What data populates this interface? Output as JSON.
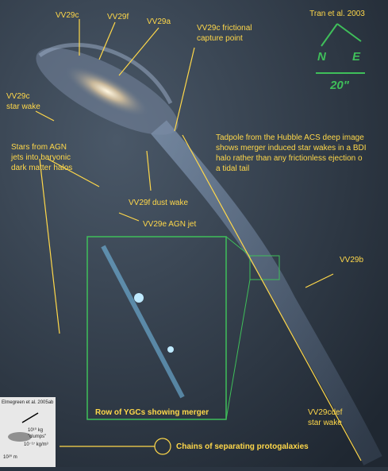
{
  "labels": {
    "vv29c_top": "VV29c",
    "vv29f": "VV29f",
    "vv29a": "VV29a",
    "capture_point": [
      "VV29c frictional",
      "capture point"
    ],
    "credit": "Tran et al. 2003",
    "north": "N",
    "east": "E",
    "scale": "20\"",
    "star_wake": [
      "VV29c",
      "star wake"
    ],
    "tadpole_note": [
      "Tadpole from the Hubble ACS deep image",
      "shows merger induced star wakes in a BDI",
      "halo rather than any frictionless ejection o",
      "a tidal tail"
    ],
    "agn_stars": [
      "Stars from AGN",
      "jets into baryonic",
      "dark matter halos"
    ],
    "dust_wake": "VV29f dust wake",
    "agn_jet": "VV29e AGN jet",
    "vv29b": "VV29b",
    "inset_caption": "Row of  YGCs showing merger",
    "cdef_wake": [
      "VV29cdef",
      "star wake"
    ],
    "chains": "Chains of separating protogalaxies",
    "elmegreen": "Elmegreen et al. 2005ab",
    "clump_mass": "10¹⁰ kg",
    "clumps": "\"clumps\"",
    "density": "10⁻¹⁷ kg/m³",
    "size": "10²⁰ m"
  }
}
